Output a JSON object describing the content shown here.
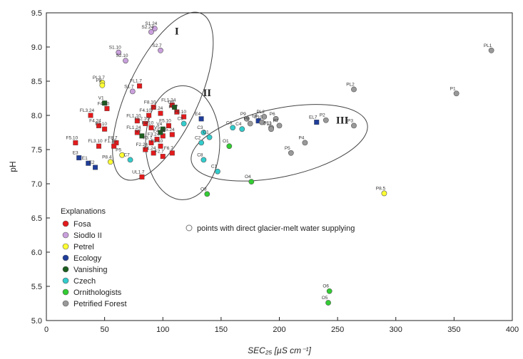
{
  "chart_data": {
    "type": "scatter",
    "xlabel": "SEC₂₅  [µS cm⁻¹]",
    "ylabel": "pH",
    "xlim": [
      0,
      400
    ],
    "ylim": [
      5.0,
      9.5
    ],
    "xticks": [
      "0",
      "50",
      "100",
      "150",
      "200",
      "250",
      "300",
      "350",
      "400"
    ],
    "yticks": [
      "5.0",
      "5.5",
      "6.0",
      "6.5",
      "7.0",
      "7.5",
      "8.0",
      "8.5",
      "9.0",
      "9.5"
    ],
    "grid": false,
    "legend": {
      "title": "Explanations",
      "placement": "bottom-left",
      "note": "points with direct glacier-melt water supplying"
    },
    "group_labels": [
      {
        "text": "I",
        "x": 112,
        "y": 9.18
      },
      {
        "text": "II",
        "x": 138,
        "y": 8.28
      },
      {
        "text": "III",
        "x": 254,
        "y": 7.88
      }
    ],
    "series": [
      {
        "name": "Fosa",
        "color": "#e31a1c",
        "points": [
          {
            "x": 80,
            "y": 8.43,
            "label": "FL1.7"
          },
          {
            "x": 92,
            "y": 8.12,
            "label": "F8.10"
          },
          {
            "x": 108,
            "y": 8.15,
            "label": "FL1.24"
          },
          {
            "x": 88,
            "y": 8.0,
            "label": "F4.10"
          },
          {
            "x": 98,
            "y": 8.03,
            "label": "F7.24"
          },
          {
            "x": 112,
            "y": 8.05,
            "label": "F5.7"
          },
          {
            "x": 118,
            "y": 7.98,
            "label": "F6.10"
          },
          {
            "x": 52,
            "y": 8.1,
            "label": "F4.10"
          },
          {
            "x": 38,
            "y": 8.0,
            "label": "FL3.24"
          },
          {
            "x": 45,
            "y": 7.85,
            "label": "F4.24"
          },
          {
            "x": 50,
            "y": 7.8,
            "label": "F7.10"
          },
          {
            "x": 78,
            "y": 7.92,
            "label": "FL1.10"
          },
          {
            "x": 85,
            "y": 7.88,
            "label": "FL2.10"
          },
          {
            "x": 78,
            "y": 7.75,
            "label": "FL1.24"
          },
          {
            "x": 90,
            "y": 7.82,
            "label": "F4.10"
          },
          {
            "x": 105,
            "y": 7.85,
            "label": "F5.10"
          },
          {
            "x": 108,
            "y": 7.72,
            "label": "F5.24"
          },
          {
            "x": 100,
            "y": 7.7,
            "label": "F4.24"
          },
          {
            "x": 95,
            "y": 7.65,
            "label": "F3.24"
          },
          {
            "x": 90,
            "y": 7.6,
            "label": "F3.7"
          },
          {
            "x": 98,
            "y": 7.55,
            "label": "F2.10"
          },
          {
            "x": 85,
            "y": 7.5,
            "label": "F2.24"
          },
          {
            "x": 92,
            "y": 7.45,
            "label": "F1.24"
          },
          {
            "x": 100,
            "y": 7.4,
            "label": "F2.7"
          },
          {
            "x": 108,
            "y": 7.45,
            "label": "F6.7"
          },
          {
            "x": 60,
            "y": 7.6,
            "label": "F8.7"
          },
          {
            "x": 58,
            "y": 7.55,
            "label": "F1.10"
          },
          {
            "x": 45,
            "y": 7.55,
            "label": "FL3.10"
          },
          {
            "x": 25,
            "y": 7.6,
            "label": "F5.10"
          },
          {
            "x": 82,
            "y": 7.1,
            "label": "UL1.7"
          }
        ]
      },
      {
        "name": "Siodlo II",
        "color": "#c9a0dc",
        "points": [
          {
            "x": 93,
            "y": 9.27,
            "label": "S1.24"
          },
          {
            "x": 90,
            "y": 9.22,
            "label": "S2.24"
          },
          {
            "x": 62,
            "y": 8.92,
            "label": "S1.10"
          },
          {
            "x": 98,
            "y": 8.95,
            "label": "S2.7"
          },
          {
            "x": 68,
            "y": 8.8,
            "label": "S2.10"
          },
          {
            "x": 74,
            "y": 8.35,
            "label": "S1.7"
          }
        ]
      },
      {
        "name": "Petrel",
        "color": "#ffff33",
        "points": [
          {
            "x": 48,
            "y": 8.48,
            "label": "PL3.7"
          },
          {
            "x": 48,
            "y": 8.44,
            "label": "P8"
          },
          {
            "x": 65,
            "y": 7.42,
            "label": "P5"
          },
          {
            "x": 55,
            "y": 7.32,
            "label": "P8.4"
          },
          {
            "x": 290,
            "y": 6.86,
            "label": "P8.5"
          }
        ]
      },
      {
        "name": "Ecology",
        "color": "#1f3d99",
        "points": [
          {
            "x": 28,
            "y": 7.38,
            "label": "E3"
          },
          {
            "x": 36,
            "y": 7.3,
            "label": "E1"
          },
          {
            "x": 42,
            "y": 7.24,
            "label": "E2"
          },
          {
            "x": 133,
            "y": 7.95,
            "label": "E4"
          },
          {
            "x": 182,
            "y": 7.92,
            "label": "E6"
          },
          {
            "x": 232,
            "y": 7.9,
            "label": "EL7"
          }
        ]
      },
      {
        "name": "Vanishing",
        "color": "#1b5e20",
        "points": [
          {
            "x": 50,
            "y": 8.18,
            "label": "V1"
          },
          {
            "x": 100,
            "y": 7.8,
            "label": "V4"
          },
          {
            "x": 98,
            "y": 7.75,
            "label": "V5"
          },
          {
            "x": 82,
            "y": 7.7,
            "label": "V2"
          },
          {
            "x": 110,
            "y": 8.12,
            "label": "O2"
          }
        ]
      },
      {
        "name": "Czech",
        "color": "#33cccc",
        "points": [
          {
            "x": 118,
            "y": 7.88,
            "label": "C5"
          },
          {
            "x": 135,
            "y": 7.75,
            "label": "C3"
          },
          {
            "x": 140,
            "y": 7.68,
            "label": "C1"
          },
          {
            "x": 133,
            "y": 7.6,
            "label": "C2"
          },
          {
            "x": 160,
            "y": 7.82,
            "label": "C6"
          },
          {
            "x": 168,
            "y": 7.8,
            "label": "C4"
          },
          {
            "x": 135,
            "y": 7.35,
            "label": "C8"
          },
          {
            "x": 147,
            "y": 7.18,
            "label": "C1"
          },
          {
            "x": 72,
            "y": 7.35,
            "label": "C7"
          }
        ]
      },
      {
        "name": "Ornithologists",
        "color": "#33cc33",
        "points": [
          {
            "x": 157,
            "y": 7.55,
            "label": "O1"
          },
          {
            "x": 176,
            "y": 7.03,
            "label": "O4"
          },
          {
            "x": 138,
            "y": 6.85,
            "label": "O3"
          },
          {
            "x": 243,
            "y": 5.43,
            "label": "O6"
          },
          {
            "x": 242,
            "y": 5.26,
            "label": "O5"
          }
        ]
      },
      {
        "name": "Petrified Forest",
        "color": "#999999",
        "points": [
          {
            "x": 382,
            "y": 8.95,
            "label": "PL1"
          },
          {
            "x": 352,
            "y": 8.32,
            "label": "P1"
          },
          {
            "x": 264,
            "y": 8.38,
            "label": "PL2"
          },
          {
            "x": 240,
            "y": 7.93,
            "label": "P2"
          },
          {
            "x": 264,
            "y": 7.85,
            "label": "P3"
          },
          {
            "x": 172,
            "y": 7.95,
            "label": "P9"
          },
          {
            "x": 187,
            "y": 7.98,
            "label": "PL2"
          },
          {
            "x": 197,
            "y": 7.95,
            "label": "P6"
          },
          {
            "x": 200,
            "y": 7.85,
            "label": "P7"
          },
          {
            "x": 193,
            "y": 7.82,
            "label": "P11"
          },
          {
            "x": 185,
            "y": 7.9,
            "label": "P10"
          },
          {
            "x": 175,
            "y": 7.88,
            "label": "P8"
          },
          {
            "x": 193,
            "y": 7.8,
            "label": "P12"
          },
          {
            "x": 222,
            "y": 7.6,
            "label": "P4"
          },
          {
            "x": 210,
            "y": 7.45,
            "label": "P5"
          }
        ]
      }
    ]
  }
}
